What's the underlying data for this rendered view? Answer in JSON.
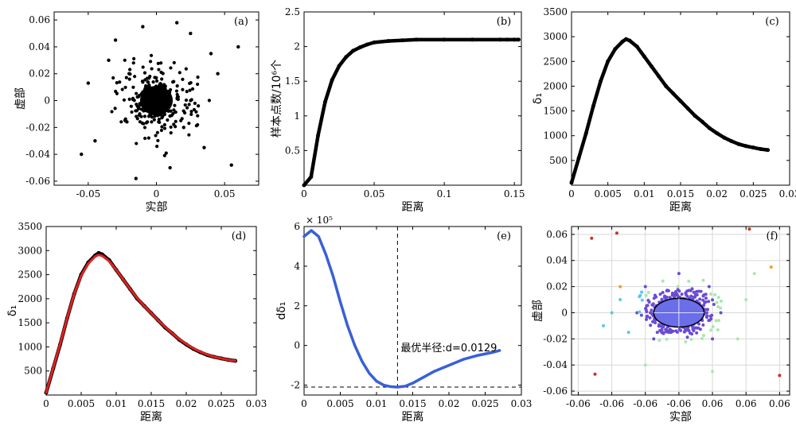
{
  "chart_data": [
    {
      "panel": "(a)",
      "type": "scatter",
      "xlabel": "实部",
      "ylabel": "虚部",
      "xlim": [
        -0.075,
        0.075
      ],
      "ylim": [
        -0.063,
        0.066
      ],
      "xticks": [
        "-0.05",
        "0",
        "0.05"
      ],
      "yticks": [
        "-0.06",
        "-0.04",
        "-0.02",
        "0",
        "0.02",
        "0.04",
        "0.06"
      ],
      "series": [
        {
          "color": "#000000",
          "note_points": "dense cluster near origin",
          "x": [
            0.0,
            -0.02,
            0.02,
            -0.035,
            0.035,
            -0.045,
            0.04,
            -0.05,
            0.055,
            0.06,
            -0.01,
            0.01,
            -0.03,
            0.025,
            -0.015,
            0.015,
            -0.055,
            0.045
          ],
          "y": [
            0.0,
            0.02,
            -0.02,
            0.03,
            -0.035,
            -0.03,
            0.035,
            0.013,
            -0.048,
            0.04,
            0.055,
            -0.05,
            0.045,
            0.05,
            -0.058,
            0.058,
            -0.04,
            0.02
          ]
        }
      ]
    },
    {
      "panel": "(b)",
      "type": "line",
      "xlabel": "距离",
      "ylabel": "样本点数/10⁶个",
      "xlim": [
        0,
        0.155
      ],
      "ylim": [
        0,
        2.5
      ],
      "xticks": [
        "0",
        "0.05",
        "0.1",
        "0.15"
      ],
      "yticks": [
        "0.5",
        "1",
        "1.5",
        "2",
        "2.5"
      ],
      "series": [
        {
          "color": "#000000",
          "x": [
            0.0,
            0.005,
            0.01,
            0.015,
            0.02,
            0.025,
            0.03,
            0.035,
            0.04,
            0.045,
            0.05,
            0.06,
            0.07,
            0.08,
            0.1,
            0.12,
            0.14,
            0.145,
            0.15,
            0.153
          ],
          "y": [
            0.0,
            0.12,
            0.72,
            1.2,
            1.52,
            1.72,
            1.85,
            1.94,
            1.99,
            2.03,
            2.06,
            2.08,
            2.09,
            2.1,
            2.1,
            2.1,
            2.1,
            2.1,
            2.1,
            2.1
          ]
        }
      ]
    },
    {
      "panel": "(c)",
      "type": "line",
      "xlabel": "距离",
      "ylabel": "δ₁",
      "xlim": [
        0,
        0.03
      ],
      "ylim": [
        0,
        3500
      ],
      "xticks": [
        "0",
        "0.005",
        "0.01",
        "0.015",
        "0.02",
        "0.025",
        "0.03"
      ],
      "yticks": [
        "500",
        "1000",
        "1500",
        "2000",
        "2500",
        "3000",
        "3500"
      ],
      "series": [
        {
          "color": "#000000",
          "x": [
            0.0,
            0.001,
            0.002,
            0.003,
            0.004,
            0.005,
            0.006,
            0.007,
            0.0075,
            0.008,
            0.009,
            0.01,
            0.011,
            0.012,
            0.013,
            0.014,
            0.015,
            0.016,
            0.017,
            0.018,
            0.019,
            0.02,
            0.021,
            0.022,
            0.023,
            0.024,
            0.025,
            0.026,
            0.027
          ],
          "y": [
            50,
            550,
            1050,
            1600,
            2100,
            2500,
            2750,
            2900,
            2950,
            2920,
            2800,
            2600,
            2400,
            2200,
            2000,
            1850,
            1700,
            1550,
            1400,
            1280,
            1150,
            1050,
            960,
            890,
            830,
            790,
            760,
            730,
            710
          ]
        }
      ]
    },
    {
      "panel": "(d)",
      "type": "line",
      "xlabel": "距离",
      "ylabel": "δ₁",
      "xlim": [
        0,
        0.03
      ],
      "ylim": [
        0,
        3500
      ],
      "xticks": [
        "0",
        "0.005",
        "0.01",
        "0.015",
        "0.02",
        "0.025",
        "0.03"
      ],
      "yticks": [
        "500",
        "1000",
        "1500",
        "2000",
        "2500",
        "3000",
        "3500"
      ],
      "series": [
        {
          "color": "#000000",
          "x": [
            0.0,
            0.001,
            0.002,
            0.003,
            0.004,
            0.005,
            0.006,
            0.007,
            0.0075,
            0.008,
            0.009,
            0.01,
            0.011,
            0.012,
            0.013,
            0.014,
            0.015,
            0.016,
            0.017,
            0.018,
            0.019,
            0.02,
            0.021,
            0.022,
            0.023,
            0.024,
            0.025,
            0.026,
            0.027
          ],
          "y": [
            50,
            550,
            1050,
            1600,
            2100,
            2500,
            2750,
            2900,
            2950,
            2920,
            2800,
            2600,
            2400,
            2200,
            2000,
            1850,
            1700,
            1550,
            1400,
            1280,
            1150,
            1050,
            960,
            890,
            830,
            790,
            760,
            730,
            710
          ]
        },
        {
          "color": "#e02020",
          "x": [
            0.0,
            0.001,
            0.002,
            0.003,
            0.004,
            0.005,
            0.006,
            0.007,
            0.0075,
            0.008,
            0.009,
            0.01,
            0.011,
            0.012,
            0.013,
            0.014,
            0.015,
            0.016,
            0.017,
            0.018,
            0.019,
            0.02,
            0.021,
            0.022,
            0.023,
            0.024,
            0.025,
            0.026,
            0.027
          ],
          "y": [
            50,
            560,
            1060,
            1600,
            2100,
            2480,
            2730,
            2880,
            2910,
            2890,
            2780,
            2600,
            2400,
            2200,
            2010,
            1850,
            1700,
            1550,
            1410,
            1280,
            1160,
            1060,
            970,
            900,
            840,
            790,
            760,
            730,
            710
          ]
        }
      ]
    },
    {
      "panel": "(e)",
      "type": "line",
      "xlabel": "距离",
      "ylabel": "dδ₁",
      "exponent_label": "× 10⁵",
      "xlim": [
        0,
        0.03
      ],
      "ylim": [
        -2.5,
        6
      ],
      "xticks": [
        "0",
        "0.005",
        "0.01",
        "0.015",
        "0.02",
        "0.025",
        "0.03"
      ],
      "yticks": [
        "-2",
        "0",
        "2",
        "4",
        "6"
      ],
      "annotation": "最优半径:d=0.0129",
      "vline_x": 0.0129,
      "hline_y": -2.1,
      "series": [
        {
          "color": "#3a5fd8",
          "x": [
            0.0,
            0.001,
            0.002,
            0.003,
            0.004,
            0.005,
            0.006,
            0.007,
            0.008,
            0.009,
            0.01,
            0.011,
            0.012,
            0.0129,
            0.014,
            0.015,
            0.016,
            0.018,
            0.02,
            0.022,
            0.024,
            0.026,
            0.027
          ],
          "y": [
            5.5,
            5.8,
            5.5,
            4.6,
            3.5,
            2.2,
            1.0,
            0.0,
            -0.8,
            -1.4,
            -1.8,
            -2.0,
            -2.08,
            -2.1,
            -2.05,
            -1.9,
            -1.7,
            -1.3,
            -1.0,
            -0.7,
            -0.5,
            -0.35,
            -0.25
          ]
        }
      ]
    },
    {
      "panel": "(f)",
      "type": "scatter",
      "xlabel": "实部",
      "ylabel": "虚部",
      "xlim": [
        -0.064,
        0.066
      ],
      "ylim": [
        -0.063,
        0.066
      ],
      "xticks": [
        "-0.06",
        "-0.06",
        "-0.06",
        "-0.06",
        "0.06",
        "0.06",
        "0.06"
      ],
      "yticks": [
        "-0.06",
        "-0.04",
        "-0.02",
        "0",
        "0.02",
        "0.04",
        "0.06"
      ],
      "ellipse_fill": "#6a6ee8",
      "colors": {
        "core": "#6a6ee8",
        "purple": "#6a4bd6",
        "cyan": "#5bc8e8",
        "green": "#a8e8b0",
        "orange": "#f0a030",
        "red": "#d03020"
      },
      "series": [
        {
          "color": "#6a4bd6",
          "x": [
            -0.02,
            0.02,
            -0.015,
            0.018,
            0.0,
            -0.025,
            0.025
          ],
          "y": [
            0.02,
            -0.02,
            -0.02,
            0.02,
            0.03,
            0.0,
            0.0
          ]
        },
        {
          "color": "#5bc8e8",
          "x": [
            -0.04,
            -0.035,
            -0.045,
            -0.03
          ],
          "y": [
            0.0,
            0.01,
            -0.01,
            -0.015
          ]
        },
        {
          "color": "#a8e8b0",
          "x": [
            0.04,
            0.035,
            0.045,
            -0.02,
            0.02
          ],
          "y": [
            0.01,
            -0.02,
            0.03,
            -0.04,
            -0.045
          ]
        },
        {
          "color": "#f0a030",
          "x": [
            -0.035,
            0.055
          ],
          "y": [
            0.02,
            0.035
          ]
        },
        {
          "color": "#d03020",
          "x": [
            -0.052,
            -0.037,
            -0.05,
            0.042,
            0.06
          ],
          "y": [
            0.057,
            0.061,
            -0.047,
            0.064,
            -0.048
          ]
        }
      ]
    }
  ]
}
